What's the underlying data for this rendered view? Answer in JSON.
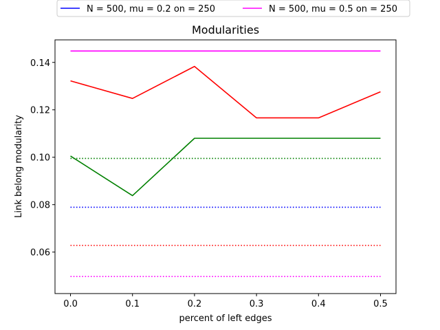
{
  "chart_data": {
    "type": "line",
    "title": "Modularities",
    "xlabel": "percent of left edges",
    "ylabel": "Link belong modularity",
    "x": [
      0.0,
      0.1,
      0.2,
      0.3,
      0.4,
      0.5
    ],
    "xlim": [
      -0.025,
      0.525
    ],
    "ylim": [
      0.0425,
      0.1495
    ],
    "xticks": [
      0.0,
      0.1,
      0.2,
      0.3,
      0.4,
      0.5
    ],
    "xtick_labels": [
      "0.0",
      "0.1",
      "0.2",
      "0.3",
      "0.4",
      "0.5"
    ],
    "yticks": [
      0.06,
      0.08,
      0.1,
      0.12,
      0.14
    ],
    "ytick_labels": [
      "0.06",
      "0.08",
      "0.10",
      "0.12",
      "0.14"
    ],
    "grid": false,
    "legend_position": "above plot, two columns",
    "series": [
      {
        "name": "N = 500, mu = 0.2 on = 250",
        "color": "#0000ff",
        "style": "solid",
        "values": null
      },
      {
        "name": "N = 500, mu = 0.5 on = 250",
        "color": "#ff00ff",
        "style": "solid",
        "values": [
          0.1448,
          0.1448,
          0.1448,
          0.1448,
          0.1448,
          0.1448
        ]
      },
      {
        "color": "#ff0000",
        "style": "solid",
        "values": [
          0.1322,
          0.1248,
          0.1383,
          0.1166,
          0.1166,
          0.1276
        ]
      },
      {
        "color": "#008000",
        "style": "solid",
        "values": [
          0.1005,
          0.0838,
          0.108,
          0.108,
          0.108,
          0.108
        ]
      },
      {
        "color": "#008000",
        "style": "dotted",
        "values": [
          0.0995,
          0.0995,
          0.0995,
          0.0995,
          0.0995,
          0.0995
        ]
      },
      {
        "color": "#0000ff",
        "style": "dotted",
        "values": [
          0.0789,
          0.0789,
          0.0789,
          0.0789,
          0.0789,
          0.0789
        ]
      },
      {
        "color": "#ff0000",
        "style": "dotted",
        "values": [
          0.0628,
          0.0628,
          0.0628,
          0.0628,
          0.0628,
          0.0628
        ]
      },
      {
        "color": "#ff00ff",
        "style": "dotted",
        "values": [
          0.0497,
          0.0497,
          0.0497,
          0.0497,
          0.0497,
          0.0497
        ]
      }
    ],
    "legend": [
      {
        "label": "N = 500, mu = 0.2 on = 250",
        "color": "#0000ff"
      },
      {
        "label": "N = 500, mu = 0.5 on = 250",
        "color": "#ff00ff"
      }
    ]
  }
}
